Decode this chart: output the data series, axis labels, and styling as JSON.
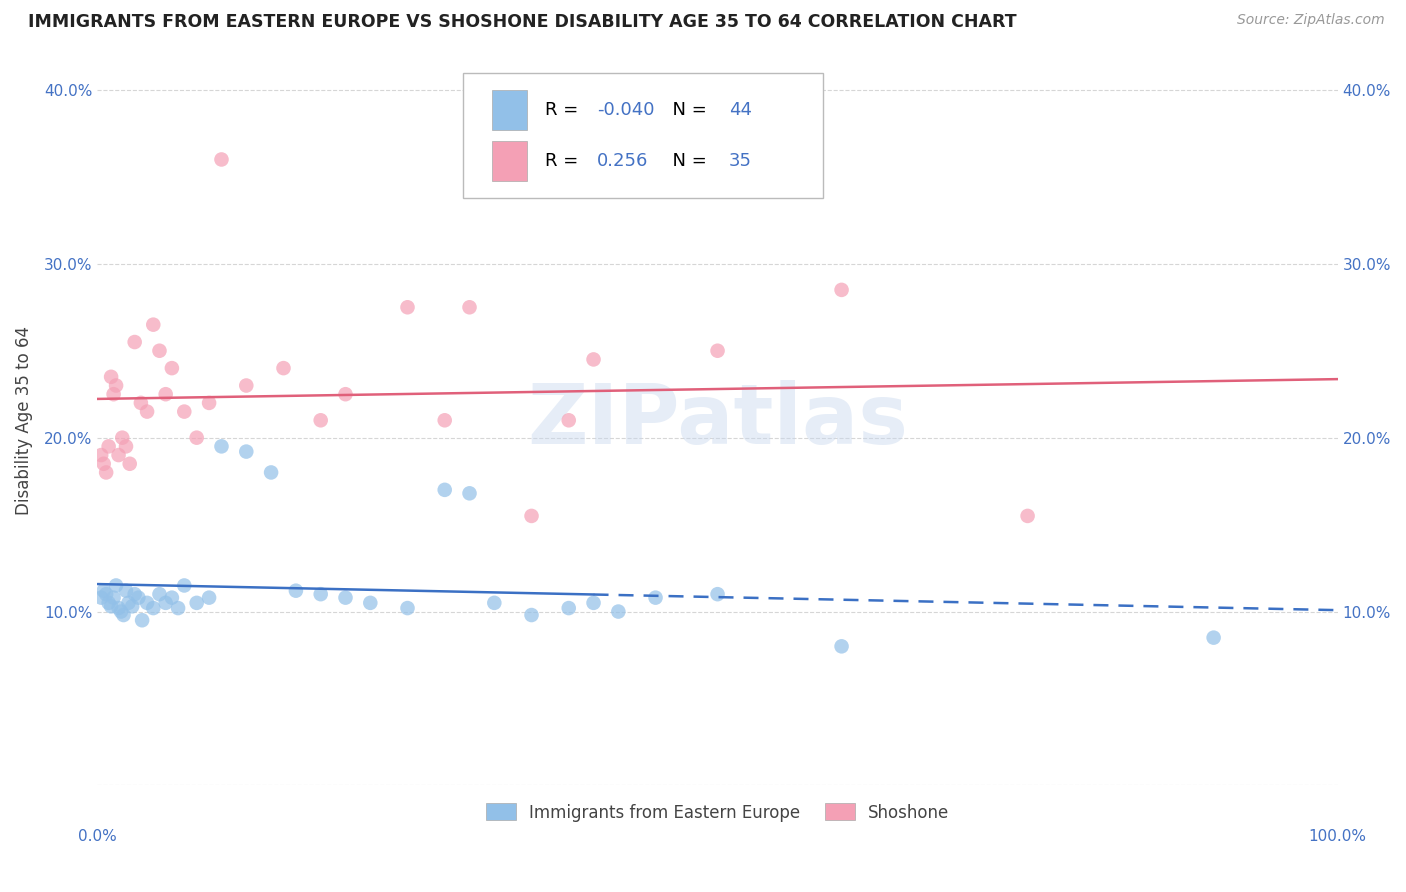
{
  "title": "IMMIGRANTS FROM EASTERN EUROPE VS SHOSHONE DISABILITY AGE 35 TO 64 CORRELATION CHART",
  "source_text": "Source: ZipAtlas.com",
  "ylabel": "Disability Age 35 to 64",
  "blue_R": -0.04,
  "blue_N": 44,
  "pink_R": 0.256,
  "pink_N": 35,
  "blue_color": "#92C0E8",
  "pink_color": "#F4A0B5",
  "blue_line_color": "#3B70C4",
  "pink_line_color": "#E0607A",
  "blue_scatter": [
    [
      0.3,
      10.8
    ],
    [
      0.5,
      11.2
    ],
    [
      0.7,
      11.0
    ],
    [
      0.9,
      10.5
    ],
    [
      1.1,
      10.3
    ],
    [
      1.3,
      10.8
    ],
    [
      1.5,
      11.5
    ],
    [
      1.7,
      10.2
    ],
    [
      1.9,
      10.0
    ],
    [
      2.1,
      9.8
    ],
    [
      2.3,
      11.2
    ],
    [
      2.5,
      10.5
    ],
    [
      2.8,
      10.3
    ],
    [
      3.0,
      11.0
    ],
    [
      3.3,
      10.8
    ],
    [
      3.6,
      9.5
    ],
    [
      4.0,
      10.5
    ],
    [
      4.5,
      10.2
    ],
    [
      5.0,
      11.0
    ],
    [
      5.5,
      10.5
    ],
    [
      6.0,
      10.8
    ],
    [
      6.5,
      10.2
    ],
    [
      7.0,
      11.5
    ],
    [
      8.0,
      10.5
    ],
    [
      9.0,
      10.8
    ],
    [
      10.0,
      19.5
    ],
    [
      12.0,
      19.2
    ],
    [
      14.0,
      18.0
    ],
    [
      16.0,
      11.2
    ],
    [
      18.0,
      11.0
    ],
    [
      20.0,
      10.8
    ],
    [
      22.0,
      10.5
    ],
    [
      25.0,
      10.2
    ],
    [
      28.0,
      17.0
    ],
    [
      30.0,
      16.8
    ],
    [
      32.0,
      10.5
    ],
    [
      35.0,
      9.8
    ],
    [
      38.0,
      10.2
    ],
    [
      40.0,
      10.5
    ],
    [
      42.0,
      10.0
    ],
    [
      45.0,
      10.8
    ],
    [
      50.0,
      11.0
    ],
    [
      60.0,
      8.0
    ],
    [
      90.0,
      8.5
    ]
  ],
  "pink_scatter": [
    [
      0.3,
      19.0
    ],
    [
      0.5,
      18.5
    ],
    [
      0.7,
      18.0
    ],
    [
      0.9,
      19.5
    ],
    [
      1.1,
      23.5
    ],
    [
      1.3,
      22.5
    ],
    [
      1.5,
      23.0
    ],
    [
      1.7,
      19.0
    ],
    [
      2.0,
      20.0
    ],
    [
      2.3,
      19.5
    ],
    [
      2.6,
      18.5
    ],
    [
      3.0,
      25.5
    ],
    [
      3.5,
      22.0
    ],
    [
      4.0,
      21.5
    ],
    [
      4.5,
      26.5
    ],
    [
      5.0,
      25.0
    ],
    [
      5.5,
      22.5
    ],
    [
      6.0,
      24.0
    ],
    [
      7.0,
      21.5
    ],
    [
      8.0,
      20.0
    ],
    [
      9.0,
      22.0
    ],
    [
      10.0,
      36.0
    ],
    [
      12.0,
      23.0
    ],
    [
      15.0,
      24.0
    ],
    [
      18.0,
      21.0
    ],
    [
      20.0,
      22.5
    ],
    [
      25.0,
      27.5
    ],
    [
      28.0,
      21.0
    ],
    [
      30.0,
      27.5
    ],
    [
      35.0,
      15.5
    ],
    [
      38.0,
      21.0
    ],
    [
      40.0,
      24.5
    ],
    [
      50.0,
      25.0
    ],
    [
      60.0,
      28.5
    ],
    [
      75.0,
      15.5
    ]
  ],
  "xlim": [
    0,
    100
  ],
  "ylim": [
    0,
    42
  ],
  "ytick_vals": [
    0,
    10,
    20,
    30,
    40
  ],
  "ytick_labels": [
    "",
    "10.0%",
    "20.0%",
    "30.0%",
    "40.0%"
  ],
  "xtick_vals": [
    0,
    20,
    40,
    60,
    80,
    100
  ],
  "xtick_labels": [
    "0.0%",
    "",
    "",
    "",
    "",
    "100.0%"
  ],
  "legend_label_blue": "Immigrants from Eastern Europe",
  "legend_label_pink": "Shoshone",
  "watermark_text": "ZIPatlas",
  "background_color": "#FFFFFF",
  "grid_color": "#CCCCCC",
  "title_color": "#222222",
  "ylabel_color": "#444444",
  "tick_color": "#4472C4",
  "source_color": "#999999",
  "blue_solid_end": 40,
  "pink_solid_end": 100
}
